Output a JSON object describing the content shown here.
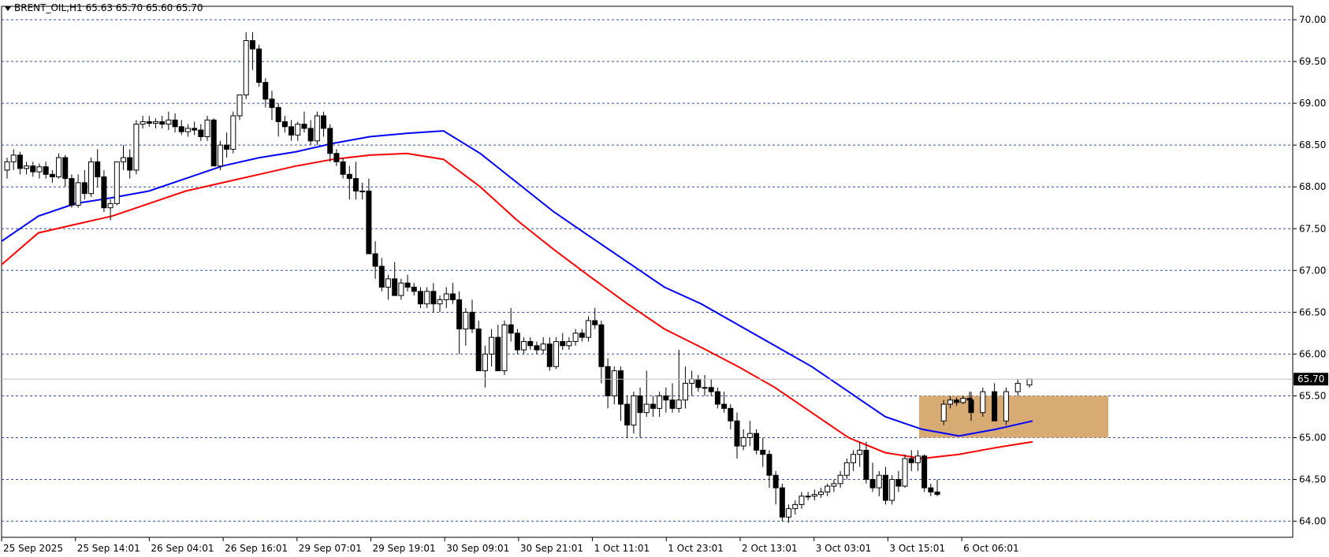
{
  "header": {
    "symbol": "BRENT_OIL,H1",
    "ohlc": "65.63 65.70 65.60 65.70"
  },
  "colors": {
    "candle_up": "#ffffff",
    "candle_down": "#000000",
    "ma_fast": "#0000ff",
    "ma_slow": "#ff0000",
    "grid": "#2f4fa8",
    "zone": "#d8ab74",
    "price_tag": "#000000"
  },
  "chart_data": {
    "type": "candlestick",
    "ylim": [
      64.0,
      70.0
    ],
    "y_ticks": [
      "70.00",
      "69.50",
      "69.00",
      "68.50",
      "68.00",
      "67.50",
      "67.00",
      "66.50",
      "66.00",
      "65.50",
      "65.00",
      "64.50",
      "64.00"
    ],
    "x_tick_labels": [
      "25 Sep 2025",
      "25 Sep 14:01",
      "26 Sep 04:01",
      "26 Sep 16:01",
      "29 Sep 07:01",
      "29 Sep 19:01",
      "30 Sep 09:01",
      "30 Sep 21:01",
      "1 Oct 11:01",
      "1 Oct 23:01",
      "2 Oct 13:01",
      "3 Oct 03:01",
      "3 Oct 15:01",
      "6 Oct 06:01"
    ],
    "current_price": "65.70",
    "zone": {
      "price_low": 65.0,
      "price_high": 65.5
    },
    "candles": [
      [
        68.2,
        68.35,
        68.1,
        68.3
      ],
      [
        68.3,
        68.45,
        68.2,
        68.38
      ],
      [
        68.38,
        68.42,
        68.15,
        68.22
      ],
      [
        68.22,
        68.3,
        68.15,
        68.25
      ],
      [
        68.25,
        68.3,
        68.12,
        68.18
      ],
      [
        68.18,
        68.28,
        68.1,
        68.24
      ],
      [
        68.24,
        68.3,
        68.1,
        68.15
      ],
      [
        68.15,
        68.2,
        68.05,
        68.12
      ],
      [
        68.12,
        68.4,
        68.1,
        68.35
      ],
      [
        68.35,
        68.38,
        68.0,
        68.1
      ],
      [
        68.1,
        68.15,
        67.75,
        67.78
      ],
      [
        67.78,
        68.15,
        67.75,
        68.05
      ],
      [
        68.05,
        68.2,
        67.85,
        67.92
      ],
      [
        67.92,
        68.35,
        67.88,
        68.3
      ],
      [
        68.3,
        68.45,
        68.0,
        68.12
      ],
      [
        68.12,
        68.2,
        67.7,
        67.75
      ],
      [
        67.75,
        67.85,
        67.6,
        67.8
      ],
      [
        67.8,
        68.3,
        67.78,
        68.3
      ],
      [
        68.3,
        68.5,
        68.2,
        68.35
      ],
      [
        68.35,
        68.45,
        68.1,
        68.2
      ],
      [
        68.2,
        68.8,
        68.15,
        68.75
      ],
      [
        68.75,
        68.85,
        68.7,
        68.78
      ],
      [
        68.78,
        68.85,
        68.72,
        68.76
      ],
      [
        68.76,
        68.82,
        68.7,
        68.78
      ],
      [
        68.78,
        68.85,
        68.7,
        68.75
      ],
      [
        68.75,
        68.9,
        68.68,
        68.8
      ],
      [
        68.8,
        68.88,
        68.65,
        68.72
      ],
      [
        68.72,
        68.8,
        68.62,
        68.66
      ],
      [
        68.66,
        68.75,
        68.6,
        68.7
      ],
      [
        68.7,
        68.78,
        68.62,
        68.68
      ],
      [
        68.68,
        68.75,
        68.55,
        68.6
      ],
      [
        68.6,
        68.85,
        68.55,
        68.8
      ],
      [
        68.8,
        68.82,
        68.25,
        68.25
      ],
      [
        68.25,
        68.55,
        68.2,
        68.5
      ],
      [
        68.5,
        68.65,
        68.35,
        68.45
      ],
      [
        68.45,
        68.9,
        68.4,
        68.85
      ],
      [
        68.85,
        69.1,
        68.8,
        69.1
      ],
      [
        69.1,
        69.85,
        69.05,
        69.75
      ],
      [
        69.75,
        69.85,
        69.4,
        69.65
      ],
      [
        69.65,
        69.7,
        69.2,
        69.25
      ],
      [
        69.25,
        69.3,
        68.95,
        69.05
      ],
      [
        69.05,
        69.15,
        68.8,
        68.95
      ],
      [
        68.95,
        69.0,
        68.6,
        68.78
      ],
      [
        68.78,
        68.85,
        68.65,
        68.72
      ],
      [
        68.72,
        68.8,
        68.55,
        68.62
      ],
      [
        68.62,
        68.78,
        68.55,
        68.75
      ],
      [
        68.75,
        68.9,
        68.65,
        68.7
      ],
      [
        68.7,
        68.8,
        68.5,
        68.55
      ],
      [
        68.55,
        68.9,
        68.5,
        68.85
      ],
      [
        68.85,
        68.9,
        68.6,
        68.7
      ],
      [
        68.7,
        68.75,
        68.3,
        68.4
      ],
      [
        68.4,
        68.45,
        68.25,
        68.3
      ],
      [
        68.3,
        68.35,
        68.1,
        68.15
      ],
      [
        68.15,
        68.25,
        67.85,
        68.1
      ],
      [
        68.1,
        68.3,
        67.85,
        67.95
      ],
      [
        67.95,
        68.05,
        67.85,
        67.95
      ],
      [
        67.95,
        68.1,
        67.2,
        67.2
      ],
      [
        67.2,
        67.35,
        66.9,
        67.05
      ],
      [
        67.05,
        67.15,
        66.75,
        66.8
      ],
      [
        66.8,
        66.95,
        66.65,
        66.9
      ],
      [
        66.9,
        67.1,
        66.7,
        66.7
      ],
      [
        66.7,
        66.9,
        66.65,
        66.85
      ],
      [
        66.85,
        66.95,
        66.75,
        66.8
      ],
      [
        66.8,
        66.85,
        66.7,
        66.75
      ],
      [
        66.75,
        66.8,
        66.55,
        66.6
      ],
      [
        66.6,
        66.8,
        66.55,
        66.75
      ],
      [
        66.75,
        66.85,
        66.5,
        66.6
      ],
      [
        66.6,
        66.7,
        66.5,
        66.65
      ],
      [
        66.65,
        66.8,
        66.55,
        66.72
      ],
      [
        66.72,
        66.85,
        66.6,
        66.65
      ],
      [
        66.65,
        66.75,
        66.0,
        66.3
      ],
      [
        66.3,
        66.55,
        66.1,
        66.5
      ],
      [
        66.5,
        66.65,
        66.25,
        66.3
      ],
      [
        66.3,
        66.4,
        65.8,
        65.8
      ],
      [
        65.8,
        66.1,
        65.6,
        66.0
      ],
      [
        66.0,
        66.3,
        65.85,
        66.2
      ],
      [
        66.2,
        66.35,
        65.8,
        65.8
      ],
      [
        65.8,
        66.4,
        65.75,
        66.35
      ],
      [
        66.35,
        66.55,
        66.15,
        66.25
      ],
      [
        66.25,
        66.3,
        66.0,
        66.05
      ],
      [
        66.05,
        66.2,
        66.0,
        66.15
      ],
      [
        66.15,
        66.2,
        66.05,
        66.1
      ],
      [
        66.1,
        66.15,
        66.0,
        66.05
      ],
      [
        66.05,
        66.2,
        66.0,
        66.12
      ],
      [
        66.12,
        66.2,
        65.8,
        65.85
      ],
      [
        65.85,
        66.2,
        65.82,
        66.15
      ],
      [
        66.15,
        66.25,
        66.05,
        66.1
      ],
      [
        66.1,
        66.2,
        66.05,
        66.15
      ],
      [
        66.15,
        66.3,
        66.1,
        66.25
      ],
      [
        66.25,
        66.3,
        66.15,
        66.2
      ],
      [
        66.2,
        66.45,
        66.15,
        66.4
      ],
      [
        66.4,
        66.55,
        66.3,
        66.35
      ],
      [
        66.35,
        66.4,
        65.65,
        65.85
      ],
      [
        65.85,
        65.95,
        65.35,
        65.5
      ],
      [
        65.5,
        65.85,
        65.4,
        65.8
      ],
      [
        65.8,
        65.85,
        65.2,
        65.4
      ],
      [
        65.4,
        65.5,
        65.0,
        65.15
      ],
      [
        65.15,
        65.55,
        65.05,
        65.5
      ],
      [
        65.5,
        65.6,
        65.0,
        65.3
      ],
      [
        65.3,
        65.8,
        65.25,
        65.4
      ],
      [
        65.4,
        65.5,
        65.25,
        65.35
      ],
      [
        65.35,
        65.55,
        65.25,
        65.5
      ],
      [
        65.5,
        65.6,
        65.3,
        65.45
      ],
      [
        65.45,
        65.65,
        65.3,
        65.35
      ],
      [
        65.35,
        66.05,
        65.3,
        65.45
      ],
      [
        65.45,
        65.85,
        65.35,
        65.65
      ],
      [
        65.65,
        65.8,
        65.5,
        65.7
      ],
      [
        65.7,
        65.75,
        65.55,
        65.6
      ],
      [
        65.6,
        65.75,
        65.5,
        65.6
      ],
      [
        65.6,
        65.7,
        65.5,
        65.55
      ],
      [
        65.55,
        65.6,
        65.35,
        65.4
      ],
      [
        65.4,
        65.55,
        65.3,
        65.35
      ],
      [
        65.35,
        65.4,
        65.1,
        65.2
      ],
      [
        65.2,
        65.3,
        64.75,
        64.9
      ],
      [
        64.9,
        65.1,
        64.85,
        65.0
      ],
      [
        65.0,
        65.2,
        64.9,
        65.05
      ],
      [
        65.05,
        65.1,
        64.8,
        64.85
      ],
      [
        64.85,
        65.0,
        64.65,
        64.8
      ],
      [
        64.8,
        64.85,
        64.4,
        64.55
      ],
      [
        64.55,
        64.6,
        64.2,
        64.4
      ],
      [
        64.4,
        64.45,
        64.0,
        64.05
      ],
      [
        64.05,
        64.2,
        63.98,
        64.15
      ],
      [
        64.15,
        64.25,
        64.08,
        64.2
      ],
      [
        64.2,
        64.35,
        64.15,
        64.3
      ],
      [
        64.3,
        64.35,
        64.25,
        64.3
      ],
      [
        64.3,
        64.38,
        64.25,
        64.32
      ],
      [
        64.32,
        64.4,
        64.28,
        64.35
      ],
      [
        64.35,
        64.45,
        64.3,
        64.42
      ],
      [
        64.42,
        64.5,
        64.35,
        64.45
      ],
      [
        64.45,
        64.6,
        64.4,
        64.55
      ],
      [
        64.55,
        64.75,
        64.5,
        64.7
      ],
      [
        64.7,
        64.85,
        64.6,
        64.8
      ],
      [
        64.8,
        64.95,
        64.65,
        64.85
      ],
      [
        64.85,
        64.95,
        64.45,
        64.5
      ],
      [
        64.5,
        64.7,
        64.35,
        64.4
      ],
      [
        64.4,
        64.6,
        64.3,
        64.55
      ],
      [
        64.55,
        64.65,
        64.2,
        64.25
      ],
      [
        64.25,
        64.55,
        64.2,
        64.5
      ],
      [
        64.5,
        64.6,
        64.35,
        64.42
      ],
      [
        64.42,
        64.8,
        64.4,
        64.75
      ],
      [
        64.75,
        64.85,
        64.6,
        64.7
      ],
      [
        64.7,
        64.85,
        64.6,
        64.78
      ],
      [
        64.78,
        64.8,
        64.35,
        64.4
      ],
      [
        64.4,
        64.45,
        64.3,
        64.35
      ],
      [
        64.35,
        64.5,
        64.3,
        64.32
      ],
      [
        65.2,
        65.45,
        65.15,
        65.4
      ],
      [
        65.4,
        65.5,
        65.35,
        65.45
      ],
      [
        65.45,
        65.48,
        65.38,
        65.42
      ],
      [
        65.42,
        65.5,
        65.4,
        65.47
      ],
      [
        65.47,
        65.55,
        65.42,
        65.45
      ],
      [
        65.45,
        65.55,
        65.2,
        65.3
      ],
      [
        65.3,
        65.6,
        65.25,
        65.55
      ],
      [
        65.55,
        65.65,
        65.2,
        65.2
      ],
      [
        65.2,
        65.6,
        65.15,
        65.55
      ],
      [
        65.55,
        65.7,
        65.5,
        65.65
      ],
      [
        65.63,
        65.7,
        65.6,
        65.7
      ]
    ],
    "ma_fast": [
      67.35,
      67.65,
      67.8,
      67.87,
      67.95,
      68.1,
      68.25,
      68.35,
      68.42,
      68.52,
      68.6,
      68.64,
      68.67,
      68.4,
      68.05,
      67.7,
      67.4,
      67.1,
      66.8,
      66.6,
      66.35,
      66.1,
      65.85,
      65.55,
      65.25,
      65.1,
      65.02,
      65.1,
      65.2
    ],
    "ma_slow": [
      67.07,
      67.45,
      67.55,
      67.65,
      67.8,
      67.95,
      68.05,
      68.15,
      68.25,
      68.33,
      68.38,
      68.4,
      68.33,
      68.0,
      67.6,
      67.25,
      66.92,
      66.6,
      66.3,
      66.08,
      65.85,
      65.6,
      65.3,
      65.0,
      64.82,
      64.75,
      64.8,
      64.88,
      64.95
    ]
  }
}
